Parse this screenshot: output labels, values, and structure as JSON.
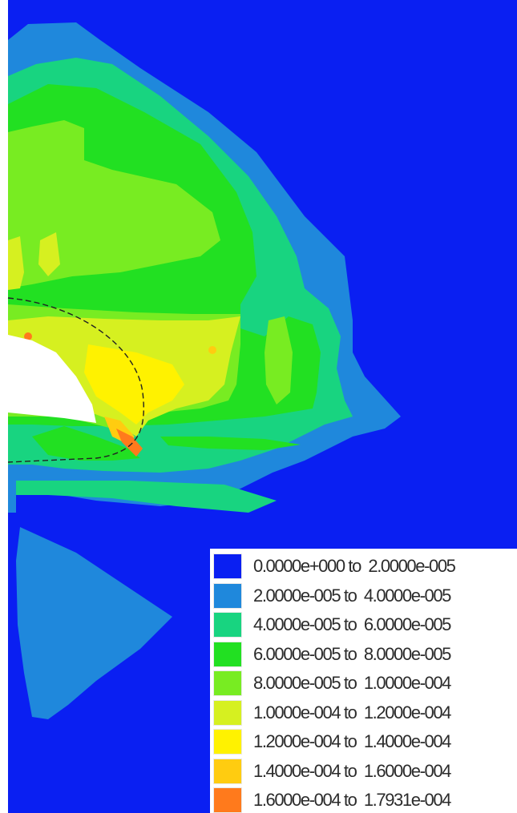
{
  "chart_data": {
    "type": "contour",
    "title": "",
    "xlabel": "",
    "ylabel": "",
    "grid": false,
    "legend_placement": "bottom-right",
    "background_color": "#0a1ff2",
    "cutout_color": "#ffffff",
    "outline_style": "dashed arc",
    "levels": [
      {
        "from": "0.0000e+000",
        "to": "2.0000e-005",
        "color": "#0a1ff2",
        "label": "0.0000e+000 to  2.0000e-005"
      },
      {
        "from": "2.0000e-005",
        "to": "4.0000e-005",
        "color": "#1f88dc",
        "label": "2.0000e-005 to  4.0000e-005"
      },
      {
        "from": "4.0000e-005",
        "to": "6.0000e-005",
        "color": "#18d480",
        "label": "4.0000e-005 to  6.0000e-005"
      },
      {
        "from": "6.0000e-005",
        "to": "8.0000e-005",
        "color": "#22e022",
        "label": "6.0000e-005 to  8.0000e-005"
      },
      {
        "from": "8.0000e-005",
        "to": "1.0000e-004",
        "color": "#78ec22",
        "label": "8.0000e-005 to  1.0000e-004"
      },
      {
        "from": "1.0000e-004",
        "to": "1.2000e-004",
        "color": "#d6f020",
        "label": "1.0000e-004 to  1.2000e-004"
      },
      {
        "from": "1.2000e-004",
        "to": "1.4000e-004",
        "color": "#fff200",
        "label": "1.2000e-004 to  1.4000e-004"
      },
      {
        "from": "1.4000e-004",
        "to": "1.6000e-004",
        "color": "#ffcc10",
        "label": "1.4000e-004 to  1.6000e-004"
      },
      {
        "from": "1.6000e-004",
        "to": "1.7931e-004",
        "color": "#ff7a1c",
        "label": "1.6000e-004 to  1.7931e-004"
      }
    ]
  }
}
